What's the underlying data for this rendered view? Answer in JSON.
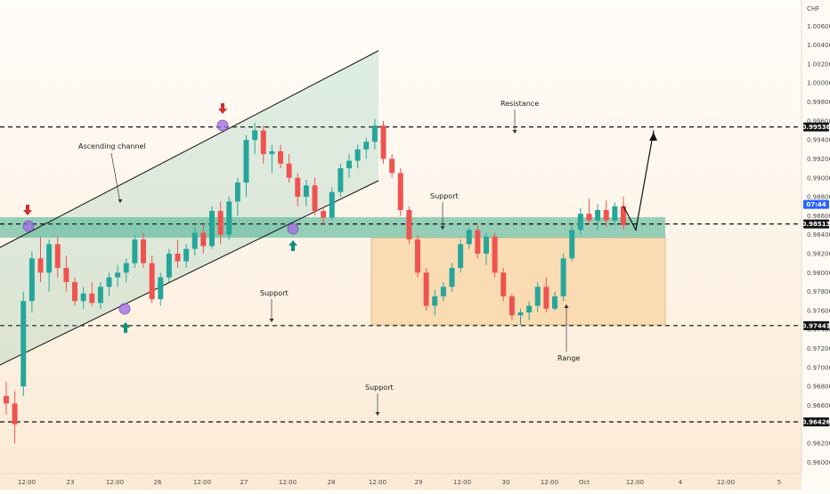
{
  "chart_data": {
    "type": "candlestick",
    "currency": "CHF",
    "ylim": [
      0.959,
      1.008
    ],
    "y_ticks": [
      "1.00600",
      "1.00400",
      "1.00200",
      "1.00000",
      "0.99800",
      "0.99600",
      "0.99400",
      "0.99200",
      "0.99000",
      "0.98800",
      "0.98600",
      "0.98400",
      "0.98200",
      "0.98000",
      "0.97800",
      "0.97600",
      "0.97400",
      "0.97200",
      "0.97000",
      "0.96800",
      "0.96600",
      "0.96400",
      "0.96200",
      "0.96000"
    ],
    "x_ticks": [
      "12:00",
      "23",
      "12:00",
      "26",
      "12:00",
      "27",
      "12:00",
      "28",
      "12:00",
      "29",
      "12:00",
      "30",
      "12:00",
      "Oct",
      "12:00",
      "4",
      "12:00",
      "5"
    ],
    "price_levels": [
      {
        "label": "0.99536",
        "value": 0.99536,
        "style": "dark"
      },
      {
        "label": "0.98513",
        "value": 0.98513,
        "style": "dark"
      },
      {
        "label": "0.97441",
        "value": 0.97441,
        "style": "dark"
      },
      {
        "label": "0.96426",
        "value": 0.96426,
        "style": "dark"
      }
    ],
    "current_price": {
      "label": "07:44",
      "value": 0.9872,
      "color": "#2962ff"
    },
    "annotations": [
      {
        "text": "Ascending channel"
      },
      {
        "text": "Resistance"
      },
      {
        "text": "Support"
      },
      {
        "text": "Support"
      },
      {
        "text": "Support"
      },
      {
        "text": "Range"
      }
    ],
    "colors": {
      "up": "#26a69a",
      "down": "#ef5350",
      "channel": "#3fae8e",
      "range": "#f7c98b",
      "marker": "#9c6ade"
    },
    "candles": [
      {
        "o": 0.967,
        "h": 0.9685,
        "l": 0.965,
        "c": 0.9662
      },
      {
        "o": 0.9662,
        "h": 0.9675,
        "l": 0.962,
        "c": 0.964
      },
      {
        "o": 0.968,
        "h": 0.978,
        "l": 0.967,
        "c": 0.977
      },
      {
        "o": 0.977,
        "h": 0.9822,
        "l": 0.9758,
        "c": 0.9815
      },
      {
        "o": 0.9815,
        "h": 0.9838,
        "l": 0.979,
        "c": 0.98
      },
      {
        "o": 0.98,
        "h": 0.9835,
        "l": 0.978,
        "c": 0.983
      },
      {
        "o": 0.983,
        "h": 0.9838,
        "l": 0.9795,
        "c": 0.9805
      },
      {
        "o": 0.9805,
        "h": 0.9818,
        "l": 0.978,
        "c": 0.979
      },
      {
        "o": 0.979,
        "h": 0.9795,
        "l": 0.9765,
        "c": 0.977
      },
      {
        "o": 0.977,
        "h": 0.9785,
        "l": 0.9762,
        "c": 0.9778
      },
      {
        "o": 0.9778,
        "h": 0.979,
        "l": 0.9765,
        "c": 0.9768
      },
      {
        "o": 0.9768,
        "h": 0.979,
        "l": 0.9762,
        "c": 0.9785
      },
      {
        "o": 0.9785,
        "h": 0.98,
        "l": 0.9775,
        "c": 0.9795
      },
      {
        "o": 0.9795,
        "h": 0.9808,
        "l": 0.9785,
        "c": 0.98
      },
      {
        "o": 0.98,
        "h": 0.9815,
        "l": 0.979,
        "c": 0.981
      },
      {
        "o": 0.981,
        "h": 0.984,
        "l": 0.9805,
        "c": 0.9835
      },
      {
        "o": 0.9835,
        "h": 0.9842,
        "l": 0.9805,
        "c": 0.981
      },
      {
        "o": 0.981,
        "h": 0.9818,
        "l": 0.9768,
        "c": 0.9772
      },
      {
        "o": 0.9772,
        "h": 0.98,
        "l": 0.9765,
        "c": 0.9795
      },
      {
        "o": 0.9795,
        "h": 0.9825,
        "l": 0.979,
        "c": 0.982
      },
      {
        "o": 0.982,
        "h": 0.9835,
        "l": 0.9805,
        "c": 0.9812
      },
      {
        "o": 0.9812,
        "h": 0.983,
        "l": 0.9805,
        "c": 0.9825
      },
      {
        "o": 0.9825,
        "h": 0.9848,
        "l": 0.9818,
        "c": 0.9842
      },
      {
        "o": 0.9842,
        "h": 0.985,
        "l": 0.982,
        "c": 0.9828
      },
      {
        "o": 0.9828,
        "h": 0.987,
        "l": 0.9825,
        "c": 0.9865
      },
      {
        "o": 0.9865,
        "h": 0.9875,
        "l": 0.983,
        "c": 0.984
      },
      {
        "o": 0.984,
        "h": 0.988,
        "l": 0.9835,
        "c": 0.9875
      },
      {
        "o": 0.9875,
        "h": 0.99,
        "l": 0.986,
        "c": 0.9895
      },
      {
        "o": 0.9895,
        "h": 0.9945,
        "l": 0.988,
        "c": 0.994
      },
      {
        "o": 0.994,
        "h": 0.9958,
        "l": 0.9925,
        "c": 0.995
      },
      {
        "o": 0.995,
        "h": 0.9955,
        "l": 0.9915,
        "c": 0.9925
      },
      {
        "o": 0.9925,
        "h": 0.9935,
        "l": 0.9905,
        "c": 0.9928
      },
      {
        "o": 0.9928,
        "h": 0.9935,
        "l": 0.991,
        "c": 0.9915
      },
      {
        "o": 0.9915,
        "h": 0.9925,
        "l": 0.9895,
        "c": 0.99
      },
      {
        "o": 0.99,
        "h": 0.9905,
        "l": 0.987,
        "c": 0.988
      },
      {
        "o": 0.988,
        "h": 0.9898,
        "l": 0.987,
        "c": 0.9892
      },
      {
        "o": 0.9892,
        "h": 0.99,
        "l": 0.986,
        "c": 0.9865
      },
      {
        "o": 0.9865,
        "h": 0.987,
        "l": 0.985,
        "c": 0.9858
      },
      {
        "o": 0.9858,
        "h": 0.989,
        "l": 0.9855,
        "c": 0.9885
      },
      {
        "o": 0.9885,
        "h": 0.9915,
        "l": 0.988,
        "c": 0.991
      },
      {
        "o": 0.991,
        "h": 0.9925,
        "l": 0.99,
        "c": 0.9918
      },
      {
        "o": 0.9918,
        "h": 0.9935,
        "l": 0.991,
        "c": 0.993
      },
      {
        "o": 0.993,
        "h": 0.9942,
        "l": 0.992,
        "c": 0.9938
      },
      {
        "o": 0.9938,
        "h": 0.9962,
        "l": 0.993,
        "c": 0.9955
      },
      {
        "o": 0.9955,
        "h": 0.996,
        "l": 0.9915,
        "c": 0.992
      },
      {
        "o": 0.992,
        "h": 0.9925,
        "l": 0.99,
        "c": 0.9905
      },
      {
        "o": 0.9905,
        "h": 0.991,
        "l": 0.986,
        "c": 0.9866
      },
      {
        "o": 0.9866,
        "h": 0.987,
        "l": 0.983,
        "c": 0.9835
      },
      {
        "o": 0.9835,
        "h": 0.984,
        "l": 0.9795,
        "c": 0.98
      },
      {
        "o": 0.98,
        "h": 0.9805,
        "l": 0.976,
        "c": 0.9765
      },
      {
        "o": 0.9765,
        "h": 0.9782,
        "l": 0.9755,
        "c": 0.9775
      },
      {
        "o": 0.9775,
        "h": 0.979,
        "l": 0.977,
        "c": 0.9785
      },
      {
        "o": 0.9785,
        "h": 0.981,
        "l": 0.978,
        "c": 0.9805
      },
      {
        "o": 0.9805,
        "h": 0.9835,
        "l": 0.98,
        "c": 0.983
      },
      {
        "o": 0.983,
        "h": 0.9848,
        "l": 0.9825,
        "c": 0.9845
      },
      {
        "o": 0.9845,
        "h": 0.985,
        "l": 0.9815,
        "c": 0.982
      },
      {
        "o": 0.982,
        "h": 0.9842,
        "l": 0.9808,
        "c": 0.9838
      },
      {
        "o": 0.9838,
        "h": 0.9842,
        "l": 0.9795,
        "c": 0.98
      },
      {
        "o": 0.98,
        "h": 0.9805,
        "l": 0.977,
        "c": 0.9775
      },
      {
        "o": 0.9775,
        "h": 0.9778,
        "l": 0.975,
        "c": 0.9755
      },
      {
        "o": 0.9755,
        "h": 0.9762,
        "l": 0.9745,
        "c": 0.9758
      },
      {
        "o": 0.9758,
        "h": 0.977,
        "l": 0.975,
        "c": 0.9765
      },
      {
        "o": 0.9765,
        "h": 0.979,
        "l": 0.9758,
        "c": 0.9785
      },
      {
        "o": 0.9785,
        "h": 0.9795,
        "l": 0.9758,
        "c": 0.9762
      },
      {
        "o": 0.9762,
        "h": 0.978,
        "l": 0.976,
        "c": 0.9775
      },
      {
        "o": 0.9775,
        "h": 0.982,
        "l": 0.977,
        "c": 0.9815
      },
      {
        "o": 0.9815,
        "h": 0.985,
        "l": 0.9812,
        "c": 0.9845
      },
      {
        "o": 0.9845,
        "h": 0.9868,
        "l": 0.984,
        "c": 0.9862
      },
      {
        "o": 0.9862,
        "h": 0.9878,
        "l": 0.985,
        "c": 0.9855
      },
      {
        "o": 0.9855,
        "h": 0.9872,
        "l": 0.9845,
        "c": 0.9866
      },
      {
        "o": 0.9866,
        "h": 0.9876,
        "l": 0.9848,
        "c": 0.9855
      },
      {
        "o": 0.9855,
        "h": 0.9874,
        "l": 0.985,
        "c": 0.987
      },
      {
        "o": 0.987,
        "h": 0.988,
        "l": 0.9845,
        "c": 0.985
      }
    ]
  }
}
